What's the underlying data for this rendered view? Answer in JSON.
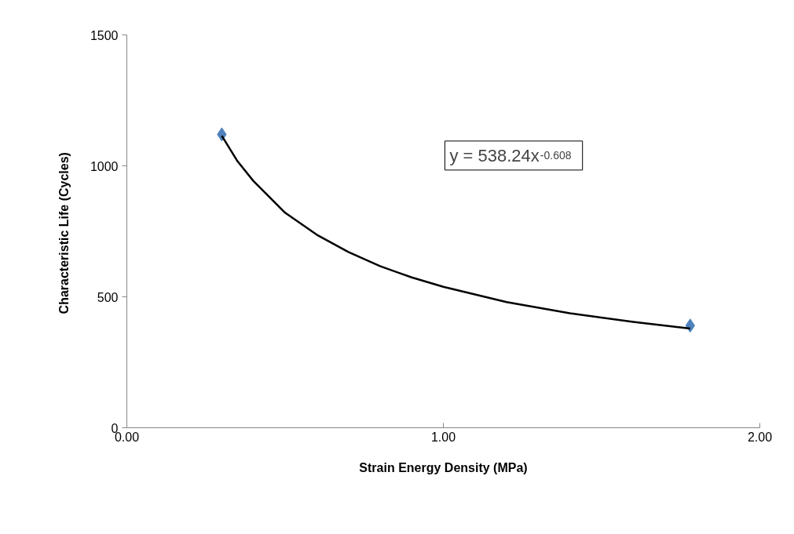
{
  "chart_data": {
    "type": "scatter",
    "xlabel": "Strain Energy Density (MPa)",
    "ylabel": "Characteristic Life  (Cycles)",
    "series": [
      {
        "color": "#4f81bd",
        "marker": "diamond",
        "x": [
          0.3,
          1.78
        ],
        "values": [
          1120,
          390
        ]
      },
      {
        "type": "line",
        "color": "#000000",
        "marker": "none",
        "line_style": "solid",
        "x": [
          0.3,
          0.35,
          0.4,
          0.5,
          0.6,
          0.7,
          0.8,
          0.9,
          1.0,
          1.2,
          1.4,
          1.6,
          1.78
        ],
        "values": [
          1115,
          1017,
          942,
          821,
          737,
          671,
          617,
          574,
          538,
          480,
          437,
          404,
          379
        ]
      }
    ],
    "annotations": [
      "y = 538.24x$^{-0.608}$"
    ],
    "xlim": [
      0,
      2
    ],
    "ylim": [
      0,
      1500
    ],
    "xticks": [
      {
        "value": 0,
        "label": "0.00"
      },
      {
        "value": 1,
        "label": "1.00"
      },
      {
        "value": 2,
        "label": "2.00"
      }
    ],
    "yticks": [
      0,
      500,
      1000,
      1500
    ],
    "grid": false
  }
}
